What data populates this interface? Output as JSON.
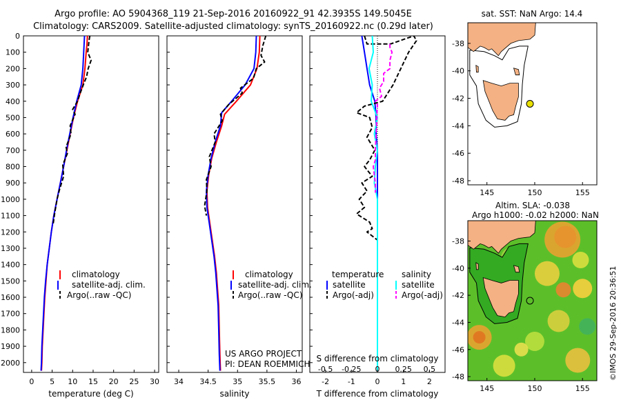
{
  "header": {
    "title_line1": "Argo profile: AO 5904368_119 21-Sep-2016 20160922_91 42.3935S 149.5045E",
    "title_line2": "Climatology: CARS2009. Satellite-adjusted climatology: synTS_20160922.nc (0.29d later)"
  },
  "colors": {
    "climatology": "#ff0000",
    "satellite": "#0000ff",
    "argo": "#000000",
    "salinity_satellite": "#00ffff",
    "salinity_argo": "#ff00ff",
    "land": "#f4b183",
    "map_box": "#000000"
  },
  "chart_data": [
    {
      "type": "line",
      "name": "temperature-panel",
      "xlabel": "temperature (deg C)",
      "ylabel": "",
      "xlim": [
        -2,
        31
      ],
      "ylim": [
        2060,
        0
      ],
      "xticks": [
        0,
        5,
        10,
        15,
        20,
        25,
        30
      ],
      "yticks": [
        0,
        100,
        200,
        300,
        400,
        500,
        600,
        700,
        800,
        900,
        1000,
        1100,
        1200,
        1300,
        1400,
        1500,
        1600,
        1700,
        1800,
        1900,
        2000
      ],
      "legend": [
        "climatology",
        "satellite-adj. clim.",
        "Argo(..raw -QC)"
      ],
      "series": [
        {
          "name": "climatology",
          "points": [
            [
              13.6,
              0
            ],
            [
              13.5,
              50
            ],
            [
              13.3,
              100
            ],
            [
              13.0,
              200
            ],
            [
              12.5,
              300
            ],
            [
              11.2,
              400
            ],
            [
              10.2,
              500
            ],
            [
              9.4,
              600
            ],
            [
              8.6,
              700
            ],
            [
              7.8,
              800
            ],
            [
              7.0,
              900
            ],
            [
              6.2,
              1000
            ],
            [
              5.4,
              1100
            ],
            [
              4.8,
              1200
            ],
            [
              4.3,
              1300
            ],
            [
              3.8,
              1400
            ],
            [
              3.5,
              1500
            ],
            [
              3.2,
              1600
            ],
            [
              3.0,
              1700
            ],
            [
              2.8,
              1800
            ],
            [
              2.6,
              1900
            ],
            [
              2.5,
              2000
            ],
            [
              2.4,
              2050
            ]
          ]
        },
        {
          "name": "satellite-adj. clim.",
          "points": [
            [
              12.9,
              0
            ],
            [
              12.8,
              50
            ],
            [
              12.7,
              100
            ],
            [
              12.5,
              200
            ],
            [
              12.1,
              300
            ],
            [
              11.0,
              400
            ],
            [
              10.1,
              500
            ],
            [
              9.3,
              600
            ],
            [
              8.5,
              700
            ],
            [
              7.8,
              800
            ],
            [
              7.0,
              900
            ],
            [
              6.2,
              1000
            ],
            [
              5.4,
              1100
            ],
            [
              4.8,
              1200
            ],
            [
              4.3,
              1300
            ],
            [
              3.8,
              1400
            ],
            [
              3.4,
              1500
            ],
            [
              3.1,
              1600
            ],
            [
              2.9,
              1700
            ],
            [
              2.7,
              1800
            ],
            [
              2.5,
              1900
            ],
            [
              2.4,
              2000
            ],
            [
              2.3,
              2050
            ]
          ]
        },
        {
          "name": "Argo(..raw -QC)",
          "points": [
            [
              14.2,
              0
            ],
            [
              14.0,
              30
            ],
            [
              13.7,
              100
            ],
            [
              14.5,
              150
            ],
            [
              13.8,
              200
            ],
            [
              13.4,
              250
            ],
            [
              12.6,
              300
            ],
            [
              11.7,
              360
            ],
            [
              11.2,
              400
            ],
            [
              10.0,
              450
            ],
            [
              10.6,
              480
            ],
            [
              9.4,
              550
            ],
            [
              9.6,
              600
            ],
            [
              8.4,
              680
            ],
            [
              8.7,
              720
            ],
            [
              7.6,
              790
            ],
            [
              7.8,
              860
            ],
            [
              6.8,
              940
            ],
            [
              6.2,
              1000
            ],
            [
              5.6,
              1090
            ],
            [
              5.2,
              1160
            ]
          ]
        }
      ]
    },
    {
      "type": "line",
      "name": "salinity-panel",
      "xlabel": "salinity",
      "xlim": [
        33.8,
        36.1
      ],
      "ylim": [
        2060,
        0
      ],
      "xticks": [
        34,
        34.5,
        35,
        35.5,
        36
      ],
      "legend": [
        "climatology",
        "satellite-adj. clim.",
        "Argo(..raw -QC)"
      ],
      "annotation": [
        "US ARGO PROJECT",
        "PI: DEAN ROEMMICH"
      ],
      "series": [
        {
          "name": "climatology",
          "points": [
            [
              35.38,
              0
            ],
            [
              35.37,
              100
            ],
            [
              35.33,
              200
            ],
            [
              35.22,
              300
            ],
            [
              34.98,
              400
            ],
            [
              34.78,
              480
            ],
            [
              34.73,
              550
            ],
            [
              34.64,
              650
            ],
            [
              34.56,
              750
            ],
            [
              34.51,
              850
            ],
            [
              34.48,
              950
            ],
            [
              34.49,
              1050
            ],
            [
              34.53,
              1150
            ],
            [
              34.57,
              1250
            ],
            [
              34.61,
              1350
            ],
            [
              34.64,
              1450
            ],
            [
              34.66,
              1550
            ],
            [
              34.68,
              1650
            ],
            [
              34.69,
              1800
            ],
            [
              34.7,
              1950
            ],
            [
              34.71,
              2050
            ]
          ]
        },
        {
          "name": "satellite-adj. clim.",
          "points": [
            [
              35.32,
              0
            ],
            [
              35.31,
              100
            ],
            [
              35.28,
              200
            ],
            [
              35.13,
              300
            ],
            [
              34.9,
              400
            ],
            [
              34.73,
              470
            ],
            [
              34.71,
              550
            ],
            [
              34.62,
              650
            ],
            [
              34.55,
              750
            ],
            [
              34.5,
              850
            ],
            [
              34.47,
              950
            ],
            [
              34.48,
              1050
            ],
            [
              34.52,
              1150
            ],
            [
              34.56,
              1250
            ],
            [
              34.6,
              1350
            ],
            [
              34.63,
              1450
            ],
            [
              34.65,
              1550
            ],
            [
              34.67,
              1650
            ],
            [
              34.68,
              1800
            ],
            [
              34.69,
              1950
            ],
            [
              34.7,
              2050
            ]
          ]
        },
        {
          "name": "Argo(..raw -QC)",
          "points": [
            [
              35.48,
              0
            ],
            [
              35.43,
              60
            ],
            [
              35.4,
              120
            ],
            [
              35.46,
              160
            ],
            [
              35.32,
              200
            ],
            [
              35.27,
              260
            ],
            [
              35.05,
              320
            ],
            [
              35.08,
              350
            ],
            [
              34.85,
              420
            ],
            [
              34.71,
              480
            ],
            [
              34.74,
              520
            ],
            [
              34.6,
              600
            ],
            [
              34.62,
              650
            ],
            [
              34.52,
              740
            ],
            [
              34.55,
              800
            ],
            [
              34.47,
              880
            ],
            [
              34.48,
              950
            ],
            [
              34.44,
              1040
            ],
            [
              34.47,
              1100
            ]
          ]
        }
      ]
    },
    {
      "type": "line",
      "name": "difference-panel",
      "xlabel": "T difference from climatology",
      "xlabel2": "S difference from climatology",
      "xlim": [
        -2.6,
        2.6
      ],
      "ylim": [
        2060,
        0
      ],
      "xticks": [
        -2,
        -1,
        0,
        1,
        2
      ],
      "xticks_s": [
        -0.5,
        -0.25,
        0,
        0.25,
        0.5
      ],
      "legend_temperature_title": "temperature",
      "legend_salinity_title": "salinity",
      "legend_temperature": [
        "satellite",
        "Argo(-adj)"
      ],
      "legend_salinity": [
        "satellite",
        "Argo(-adj)"
      ],
      "series": [
        {
          "name": "temperature satellite",
          "points": [
            [
              -0.6,
              0
            ],
            [
              -0.5,
              100
            ],
            [
              -0.4,
              200
            ],
            [
              -0.3,
              300
            ],
            [
              -0.1,
              400
            ],
            [
              -0.05,
              500
            ],
            [
              -0.05,
              600
            ],
            [
              0.0,
              700
            ],
            [
              0.0,
              800
            ],
            [
              0.0,
              900
            ],
            [
              0.0,
              1000
            ],
            [
              0.0,
              1200
            ],
            [
              0.0,
              1500
            ],
            [
              0.0,
              1800
            ],
            [
              0.0,
              2050
            ]
          ]
        },
        {
          "name": "temperature Argo(-adj)",
          "points": [
            [
              -0.5,
              0
            ],
            [
              -0.4,
              50
            ],
            [
              0.5,
              50
            ],
            [
              1.4,
              0
            ],
            [
              1.5,
              30
            ],
            [
              1.2,
              100
            ],
            [
              0.9,
              200
            ],
            [
              0.6,
              300
            ],
            [
              0.2,
              400
            ],
            [
              -0.5,
              430
            ],
            [
              -0.8,
              470
            ],
            [
              -0.3,
              500
            ],
            [
              -0.2,
              560
            ],
            [
              -0.4,
              620
            ],
            [
              -0.1,
              700
            ],
            [
              -0.3,
              760
            ],
            [
              -0.5,
              800
            ],
            [
              -0.2,
              860
            ],
            [
              -0.6,
              900
            ],
            [
              -0.4,
              950
            ],
            [
              -0.7,
              1000
            ],
            [
              -0.5,
              1050
            ],
            [
              -0.8,
              1090
            ],
            [
              -0.3,
              1140
            ],
            [
              -0.2,
              1180
            ],
            [
              -0.4,
              1200
            ],
            [
              0.0,
              1250
            ]
          ]
        },
        {
          "name": "salinity satellite",
          "points": [
            [
              -0.05,
              0
            ],
            [
              -0.04,
              100
            ],
            [
              -0.08,
              200
            ],
            [
              -0.05,
              300
            ],
            [
              -0.06,
              400
            ],
            [
              0.0,
              500
            ],
            [
              -0.03,
              600
            ],
            [
              0.0,
              700
            ],
            [
              -0.02,
              800
            ],
            [
              -0.03,
              900
            ],
            [
              0.0,
              1000
            ],
            [
              0.0,
              1200
            ],
            [
              0.0,
              1500
            ],
            [
              0.0,
              1800
            ],
            [
              0.0,
              2050
            ]
          ]
        },
        {
          "name": "salinity Argo(-adj)",
          "points": [
            [
              0.12,
              50
            ],
            [
              0.12,
              70
            ],
            [
              0.14,
              100
            ],
            [
              0.12,
              150
            ],
            [
              0.12,
              200
            ],
            [
              0.06,
              230
            ],
            [
              0.06,
              280
            ],
            [
              0.02,
              320
            ],
            [
              0.04,
              370
            ],
            [
              -0.02,
              400
            ],
            [
              0.0,
              420
            ],
            [
              -0.02,
              700
            ],
            [
              -0.02,
              760
            ],
            [
              -0.04,
              800
            ],
            [
              -0.02,
              900
            ],
            [
              -0.02,
              960
            ]
          ]
        }
      ]
    },
    {
      "type": "heatmap",
      "name": "sst-map",
      "title": "sat. SST: NaN Argo: 14.4",
      "xlim": [
        143,
        156.5
      ],
      "ylim": [
        -48.3,
        -36.5
      ],
      "xticks": [
        145,
        150,
        155
      ],
      "yticks": [
        -38,
        -40,
        -42,
        -44,
        -46,
        -48
      ],
      "argo_point": [
        149.5,
        -42.4
      ]
    },
    {
      "type": "heatmap",
      "name": "sla-map",
      "title_line1": "Altim. SLA: -0.038",
      "title_line2": "Argo h1000: -0.02 h2000: NaN",
      "xlim": [
        143,
        156.5
      ],
      "ylim": [
        -48.3,
        -36.5
      ],
      "xticks": [
        145,
        150,
        155
      ],
      "yticks": [
        -38,
        -40,
        -42,
        -44,
        -46,
        -48
      ],
      "argo_point": [
        149.5,
        -42.4
      ]
    }
  ],
  "credit": "©IMOS 29-Sep-2016 20:36:51"
}
